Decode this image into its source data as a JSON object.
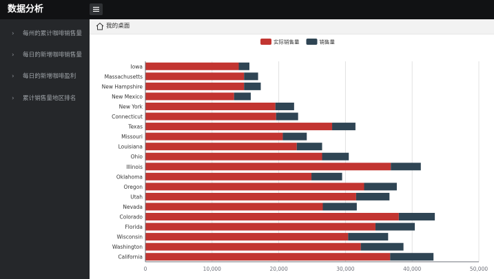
{
  "app": {
    "title": "数据分析"
  },
  "topbar": {
    "menu_icon": "hamburger-icon"
  },
  "sidebar": {
    "items": [
      {
        "label": "每州的累计咖啡销售量",
        "icon": "chevron-right-icon"
      },
      {
        "label": "每日的新增咖啡销售量",
        "icon": "chevron-right-icon"
      },
      {
        "label": "每日的新增咖啡盈利",
        "icon": "chevron-right-icon"
      },
      {
        "label": "累计销售量地区排名",
        "icon": "chevron-right-icon"
      }
    ]
  },
  "breadcrumb": {
    "icon": "home-icon",
    "label": "我的桌面"
  },
  "colors": {
    "actual": "#c23531",
    "sales": "#2f4554",
    "grid": "#e0e0e0",
    "axis": "#6e7079"
  },
  "chart_data": {
    "type": "bar",
    "orientation": "horizontal",
    "stacked": true,
    "categories": [
      "Iowa",
      "Massachusetts",
      "New Hampshire",
      "New Mexico",
      "New York",
      "Connecticut",
      "Texas",
      "Missouri",
      "Louisiana",
      "Ohio",
      "Illinois",
      "Oklahoma",
      "Oregon",
      "Utah",
      "Nevada",
      "Colorado",
      "Florida",
      "Wisconsin",
      "Washington",
      "California"
    ],
    "series": [
      {
        "name": "实际销售量",
        "values": [
          14000,
          14800,
          14800,
          13300,
          19500,
          19600,
          28000,
          20600,
          22700,
          26500,
          36800,
          24900,
          32800,
          31600,
          26600,
          38000,
          34500,
          30400,
          32300,
          36700
        ]
      },
      {
        "name": "销售量",
        "values": [
          1600,
          2100,
          2500,
          2500,
          2800,
          3300,
          3500,
          3600,
          3800,
          4000,
          4500,
          4600,
          4900,
          5000,
          5100,
          5400,
          5900,
          6000,
          6400,
          6500
        ]
      }
    ],
    "xlim": [
      0,
      50000
    ],
    "xticks": [
      "0",
      "10,000",
      "20,000",
      "30,000",
      "40,000",
      "50,000"
    ],
    "legend_position": "top-center"
  }
}
